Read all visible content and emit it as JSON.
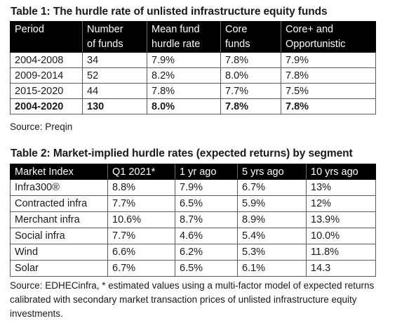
{
  "table1": {
    "title": "Table 1: The hurdle rate of unlisted infrastructure equity funds",
    "headers": [
      [
        "Period",
        ""
      ],
      [
        "Number",
        "of funds"
      ],
      [
        "Mean fund",
        "hurdle rate"
      ],
      [
        "Core",
        "funds"
      ],
      [
        "Core+ and",
        "Opportunistic"
      ]
    ],
    "rows": [
      [
        "2004-2008",
        "34",
        "7.9%",
        "7.8%",
        "7.9%"
      ],
      [
        "2009-2014",
        "52",
        "8.2%",
        "8.0%",
        "7.8%"
      ],
      [
        "2015-2020",
        "44",
        "7.8%",
        "7.7%",
        "7.5%"
      ]
    ],
    "total_row": [
      "2004-2020",
      "130",
      "8.0%",
      "7.8%",
      "7.8%"
    ],
    "source": "Source: Preqin"
  },
  "table2": {
    "title": "Table 2: Market-implied hurdle rates (expected returns) by segment",
    "headers": [
      "Market Index",
      "Q1 2021*",
      "1 yr ago",
      "5 yrs ago",
      "10 yrs ago"
    ],
    "rows": [
      [
        "Infra300®",
        "8.8%",
        "7.9%",
        "6.7%",
        "13%"
      ],
      [
        "Contracted infra",
        "7.7%",
        "6.5%",
        "5.9%",
        "12%"
      ],
      [
        "Merchant infra",
        "10.6%",
        "8.7%",
        "8.9%",
        "13.9%"
      ],
      [
        "Social infra",
        "7.7%",
        "4.6%",
        "5.4%",
        "10.0%"
      ],
      [
        "Wind",
        "6.6%",
        "6.2%",
        "5.3%",
        "11.8%"
      ],
      [
        "Solar",
        "6.7%",
        "6.5%",
        "6.1%",
        "14.3"
      ]
    ],
    "source": "Source: EDHECinfra, * estimated values using a multi-factor model of expected returns calibrated with secondary market transaction prices of unlisted infrastructure equity investments."
  }
}
